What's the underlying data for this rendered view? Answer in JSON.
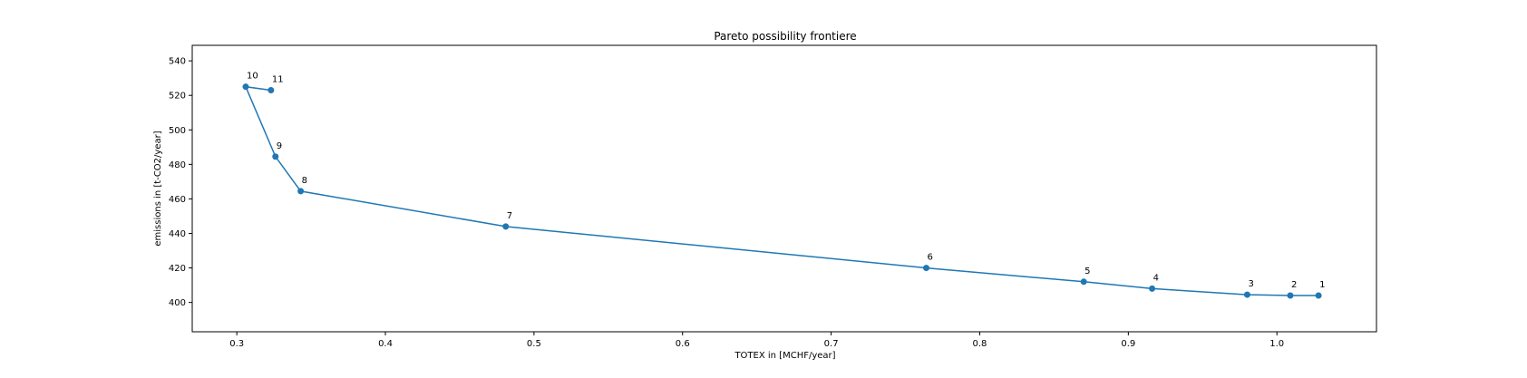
{
  "chart_data": {
    "type": "line",
    "title": "Pareto possibility frontiere",
    "xlabel": "TOTEX in [MCHF/year]",
    "ylabel": "emissions in [t-CO2/year]",
    "xlim": [
      0.27,
      1.067
    ],
    "ylim": [
      383,
      549
    ],
    "xticks": [
      0.3,
      0.4,
      0.5,
      0.6,
      0.7,
      0.8,
      0.9,
      1.0
    ],
    "xtick_labels": [
      "0.3",
      "0.4",
      "0.5",
      "0.6",
      "0.7",
      "0.8",
      "0.9",
      "1.0"
    ],
    "yticks": [
      400,
      420,
      440,
      460,
      480,
      500,
      520,
      540
    ],
    "ytick_labels": [
      "400",
      "420",
      "440",
      "460",
      "480",
      "500",
      "520",
      "540"
    ],
    "grid": false,
    "color": "#1f77b4",
    "series": [
      {
        "points": [
          {
            "label": "1",
            "x": 1.028,
            "y": 404
          },
          {
            "label": "2",
            "x": 1.009,
            "y": 404
          },
          {
            "label": "3",
            "x": 0.98,
            "y": 404.5
          },
          {
            "label": "4",
            "x": 0.916,
            "y": 408
          },
          {
            "label": "5",
            "x": 0.87,
            "y": 412
          },
          {
            "label": "6",
            "x": 0.764,
            "y": 420
          },
          {
            "label": "7",
            "x": 0.481,
            "y": 444
          },
          {
            "label": "8",
            "x": 0.343,
            "y": 464.5
          },
          {
            "label": "9",
            "x": 0.326,
            "y": 484.5
          },
          {
            "label": "10",
            "x": 0.306,
            "y": 525
          },
          {
            "label": "11",
            "x": 0.323,
            "y": 523
          }
        ]
      }
    ]
  }
}
